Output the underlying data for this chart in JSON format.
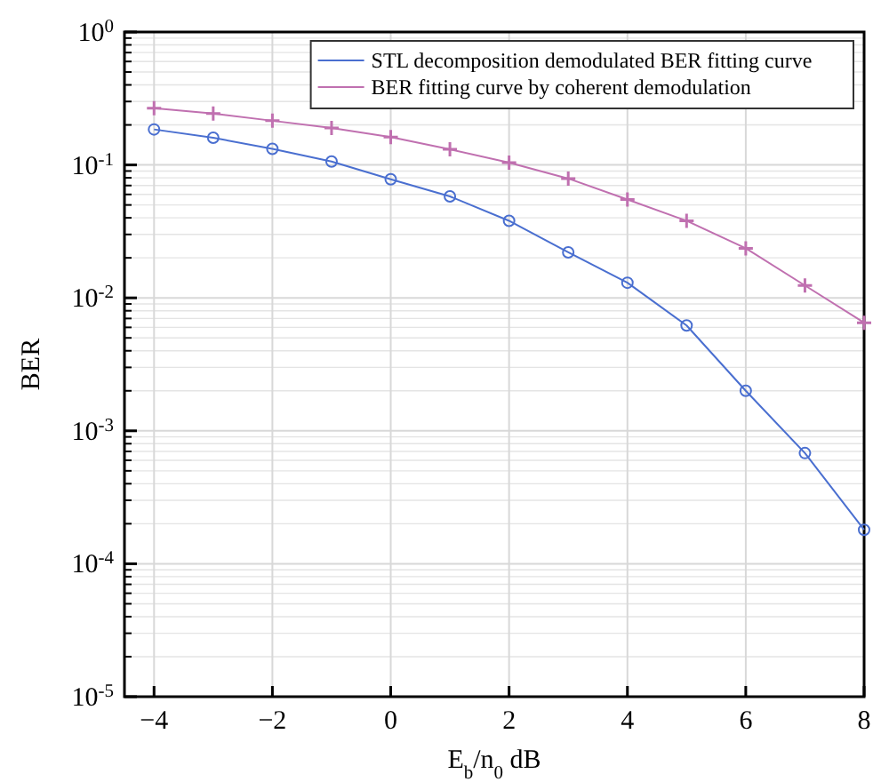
{
  "chart_data": {
    "type": "line",
    "xlabel": "E$_{b}$/n$_{0}$ dB",
    "ylabel": "BER",
    "log": "y",
    "grid": true,
    "legend": "top right",
    "xlim": [
      -4.5,
      8
    ],
    "xticks": [
      -4,
      -2,
      0,
      2,
      4,
      6,
      8
    ],
    "ylim": [
      1e-05,
      1
    ],
    "yticks": [
      {
        "value": 1,
        "label": "10$^{0}$"
      },
      {
        "value": 0.1,
        "label": "10$^{-1}$"
      },
      {
        "value": 0.01,
        "label": "10$^{-2}$"
      },
      {
        "value": 0.001,
        "label": "10$^{-3}$"
      },
      {
        "value": 0.0001,
        "label": "10$^{-4}$"
      },
      {
        "value": 1e-05,
        "label": "10$^{-5}$"
      }
    ],
    "x": [
      -4,
      -3,
      -2,
      -1,
      0,
      1,
      2,
      3,
      4,
      5,
      6,
      7,
      8
    ],
    "series": [
      {
        "name": "STL decomposition demodulated BER fitting curve",
        "color": "#4a6fd0",
        "marker": "circle",
        "values": [
          0.185,
          0.16,
          0.132,
          0.106,
          0.078,
          0.058,
          0.038,
          0.022,
          0.013,
          0.0062,
          0.002,
          0.00068,
          0.00018
        ]
      },
      {
        "name": "BER fitting curve by coherent demodulation",
        "color": "#c070b0",
        "marker": "cross",
        "values": [
          0.267,
          0.244,
          0.215,
          0.19,
          0.162,
          0.131,
          0.104,
          0.079,
          0.055,
          0.038,
          0.0236,
          0.0124,
          0.0065
        ]
      }
    ]
  }
}
